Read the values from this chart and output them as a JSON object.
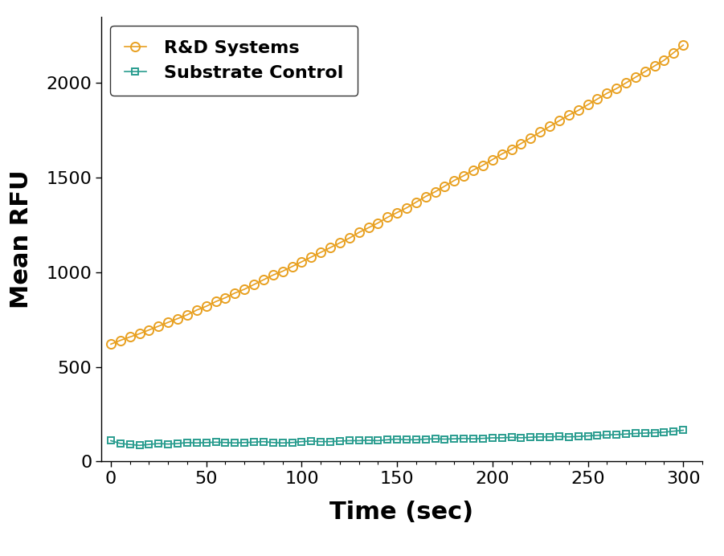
{
  "title": "",
  "xlabel": "Time (sec)",
  "ylabel": "Mean RFU",
  "xlim": [
    -5,
    310
  ],
  "ylim": [
    0,
    2350
  ],
  "xticks": [
    0,
    50,
    100,
    150,
    200,
    250,
    300
  ],
  "yticks": [
    0,
    500,
    1000,
    1500,
    2000
  ],
  "series": [
    {
      "label": "R&D Systems",
      "color": "#E8A020",
      "marker": "o",
      "markersize": 8,
      "linewidth": 1.2,
      "markerfacecolor": "none",
      "markeredgewidth": 1.4,
      "x": [
        0,
        5,
        10,
        15,
        20,
        25,
        30,
        35,
        40,
        45,
        50,
        55,
        60,
        65,
        70,
        75,
        80,
        85,
        90,
        95,
        100,
        105,
        110,
        115,
        120,
        125,
        130,
        135,
        140,
        145,
        150,
        155,
        160,
        165,
        170,
        175,
        180,
        185,
        190,
        195,
        200,
        205,
        210,
        215,
        220,
        225,
        230,
        235,
        240,
        245,
        250,
        255,
        260,
        265,
        270,
        275,
        280,
        285,
        290,
        295,
        300
      ],
      "y": [
        620,
        640,
        658,
        675,
        695,
        715,
        735,
        755,
        775,
        800,
        820,
        845,
        865,
        890,
        910,
        935,
        960,
        985,
        1005,
        1030,
        1055,
        1080,
        1105,
        1130,
        1155,
        1180,
        1210,
        1235,
        1260,
        1290,
        1315,
        1340,
        1370,
        1400,
        1425,
        1455,
        1485,
        1510,
        1540,
        1565,
        1595,
        1625,
        1650,
        1680,
        1710,
        1740,
        1770,
        1800,
        1830,
        1855,
        1885,
        1915,
        1945,
        1970,
        2000,
        2030,
        2060,
        2090,
        2120,
        2160,
        2200
      ]
    },
    {
      "label": "Substrate Control",
      "color": "#2A9D8F",
      "marker": "s",
      "markersize": 6,
      "linewidth": 1.2,
      "markerfacecolor": "none",
      "markeredgewidth": 1.4,
      "x": [
        0,
        5,
        10,
        15,
        20,
        25,
        30,
        35,
        40,
        45,
        50,
        55,
        60,
        65,
        70,
        75,
        80,
        85,
        90,
        95,
        100,
        105,
        110,
        115,
        120,
        125,
        130,
        135,
        140,
        145,
        150,
        155,
        160,
        165,
        170,
        175,
        180,
        185,
        190,
        195,
        200,
        205,
        210,
        215,
        220,
        225,
        230,
        235,
        240,
        245,
        250,
        255,
        260,
        265,
        270,
        275,
        280,
        285,
        290,
        295,
        300
      ],
      "y": [
        110,
        95,
        90,
        85,
        90,
        95,
        92,
        95,
        100,
        98,
        100,
        102,
        100,
        98,
        100,
        102,
        105,
        100,
        98,
        100,
        105,
        108,
        105,
        105,
        108,
        110,
        110,
        112,
        110,
        115,
        118,
        115,
        115,
        118,
        120,
        118,
        120,
        122,
        120,
        122,
        125,
        125,
        128,
        125,
        128,
        130,
        130,
        132,
        130,
        132,
        135,
        138,
        140,
        142,
        145,
        148,
        150,
        152,
        155,
        160,
        165
      ]
    }
  ],
  "legend": {
    "loc": "upper left",
    "frameon": true,
    "edgecolor": "black"
  },
  "background_color": "#ffffff",
  "xlabel_fontsize": 22,
  "ylabel_fontsize": 22,
  "tick_fontsize": 16,
  "legend_label_fontsize": 16,
  "xlabel_fontweight": "bold",
  "ylabel_fontweight": "bold"
}
